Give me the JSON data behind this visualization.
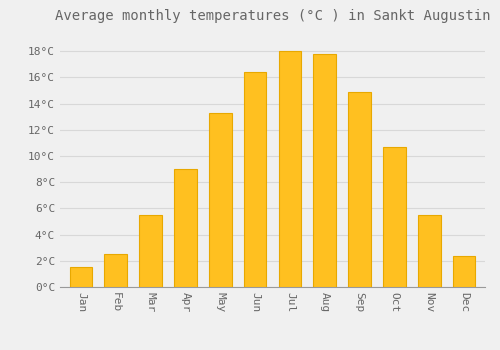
{
  "title": "Average monthly temperatures (°C ) in Sankt Augustin",
  "months": [
    "Jan",
    "Feb",
    "Mar",
    "Apr",
    "May",
    "Jun",
    "Jul",
    "Aug",
    "Sep",
    "Oct",
    "Nov",
    "Dec"
  ],
  "values": [
    1.5,
    2.5,
    5.5,
    9.0,
    13.3,
    16.4,
    18.0,
    17.8,
    14.9,
    10.7,
    5.5,
    2.4
  ],
  "bar_color": "#FFC020",
  "bar_edge_color": "#E8A800",
  "background_color": "#F0F0F0",
  "grid_color": "#D8D8D8",
  "text_color": "#666666",
  "ylim": [
    0,
    19.5
  ],
  "yticks": [
    0,
    2,
    4,
    6,
    8,
    10,
    12,
    14,
    16,
    18
  ],
  "title_fontsize": 10,
  "tick_fontsize": 8,
  "bar_width": 0.65
}
